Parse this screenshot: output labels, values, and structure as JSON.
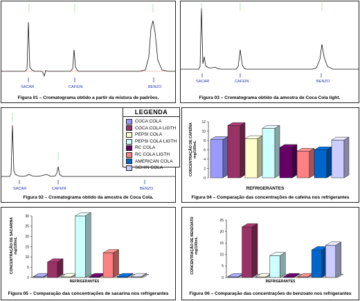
{
  "captions": {
    "fig01": "Figura 01 – Cromatograma obtido a partir da mistura de padrões.",
    "fig03": "Figura 03 – Cromatograma obtido da amostra de Coca Cola light.",
    "fig02": "Figura 02 – Cromatograma obtido da amostra de Coca Cola.",
    "fig04": "Figura 04 – Comparação das concentrações de cafeína nos refrigerantes",
    "fig05": "Figura 05 – Comparação das concentrações de sacarina  nos refrigerantes",
    "fig06": "Figura 06 – Comparação das concentrações de benzoato  nos refrigerantes"
  },
  "peak_labels": {
    "sacar": "SACAR",
    "cafein": "CAFEIN",
    "benzo": "BENZO"
  },
  "legend": {
    "title": "LEGENDA",
    "items": [
      {
        "label": "COCA COLA",
        "color": "#9999ff"
      },
      {
        "label": "COCA COLA LIGTH",
        "color": "#993366"
      },
      {
        "label": "PEPSI COLA",
        "color": "#ffffcc"
      },
      {
        "label": "PEPSI COLA LIGTH",
        "color": "#ccffff"
      },
      {
        "label": "RC COLA",
        "color": "#660066"
      },
      {
        "label": "RC COLA LIGTH",
        "color": "#ff8080"
      },
      {
        "label": "AMERICAN COLA",
        "color": "#0066cc"
      },
      {
        "label": "SCHIN COLA",
        "color": "#ccccff"
      }
    ]
  },
  "chart_data": [
    {
      "type": "bar",
      "id": "fig04",
      "categories": [
        "COCA COLA",
        "COCA COLA LIGTH",
        "PEPSI COLA",
        "PEPSI COLA LIGTH",
        "RC COLA",
        "RC COLA LIGTH",
        "AMERICAN COLA",
        "SCHIN COLA"
      ],
      "values": [
        8.2,
        11.2,
        8.4,
        10.6,
        6.5,
        5.7,
        6.0,
        8.1
      ],
      "xlabel": "REFRIGERANTES",
      "ylabel": "CONCENTRAÇÃO DE CAFEÍNA mg/100mL",
      "ylim": [
        0,
        12
      ],
      "yticks": [
        "0",
        "2",
        "4",
        "6",
        "8",
        "10",
        "12"
      ]
    },
    {
      "type": "bar",
      "id": "fig05",
      "categories": [
        "COCA COLA",
        "COCA COLA LIGTH",
        "PEPSI COLA",
        "PEPSI COLA LIGTH",
        "RC COLA",
        "RC COLA LIGTH",
        "AMERICAN COLA",
        "SCHIN COLA"
      ],
      "values": [
        0,
        7.5,
        0,
        30,
        0,
        12,
        0,
        0
      ],
      "xlabel": "REFRIGERANTES",
      "ylabel": "CONCENTRAÇÃO DE SACARINA mg/100mL",
      "ylim": [
        0,
        30
      ],
      "yticks": [
        "0",
        "5",
        "10",
        "15",
        "20",
        "25",
        "30"
      ]
    },
    {
      "type": "bar",
      "id": "fig06",
      "categories": [
        "COCA COLA",
        "COCA COLA LIGTH",
        "PEPSI COLA",
        "PEPSI COLA LIGTH",
        "RC COLA",
        "RC COLA LIGTH",
        "AMERICAN COLA",
        "SCHIN COLA"
      ],
      "values": [
        0,
        22,
        0,
        9.5,
        0,
        0,
        12,
        14
      ],
      "xlabel": "REFRIGERANTES",
      "ylabel": "CONCENTRAÇÃO DE BENZOATO mg/100mL",
      "ylim": [
        0,
        25
      ],
      "yticks": [
        "0",
        "5",
        "10",
        "15",
        "20",
        "25"
      ]
    }
  ]
}
